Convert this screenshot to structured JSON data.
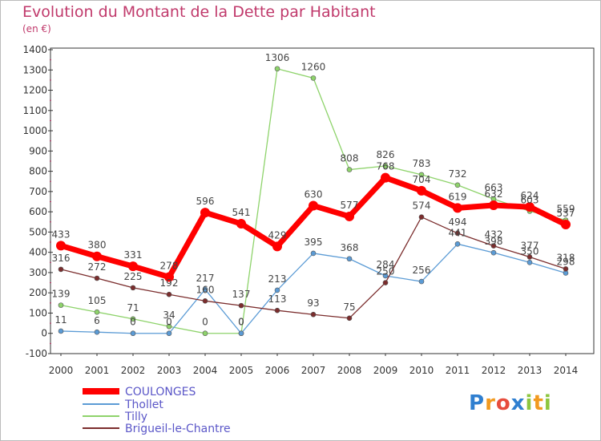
{
  "title": "Evolution du Montant de la Dette par Habitant",
  "unit": "(en €)",
  "logo": "Proxiti",
  "chart_data": {
    "type": "line",
    "x": [
      "2000",
      "2001",
      "2002",
      "2003",
      "2004",
      "2005",
      "2006",
      "2007",
      "2008",
      "2009",
      "2010",
      "2011",
      "2012",
      "2013",
      "2014"
    ],
    "ylim": [
      -100,
      1400
    ],
    "yticks": [
      -100,
      0,
      100,
      200,
      300,
      400,
      500,
      600,
      700,
      800,
      900,
      1000,
      1100,
      1200,
      1300,
      1400
    ],
    "grid": false,
    "legend": "bottom-left",
    "series": [
      {
        "name": "COULONGES",
        "color": "#ff0000",
        "values": [
          433,
          380,
          331,
          278,
          596,
          541,
          429,
          630,
          577,
          768,
          704,
          619,
          632,
          624,
          537
        ]
      },
      {
        "name": "Thollet",
        "color": "#5b9bd5",
        "values": [
          11,
          6,
          0,
          0,
          217,
          0,
          213,
          395,
          368,
          284,
          256,
          441,
          398,
          350,
          298
        ]
      },
      {
        "name": "Tilly",
        "color": "#8ed36b",
        "values": [
          139,
          105,
          71,
          34,
          0,
          0,
          1306,
          1260,
          808,
          826,
          783,
          732,
          663,
          603,
          559
        ]
      },
      {
        "name": "Brigueil-le-Chantre",
        "color": "#7b2d2d",
        "values": [
          316,
          272,
          225,
          192,
          160,
          137,
          113,
          93,
          75,
          250,
          574,
          494,
          432,
          377,
          318
        ]
      }
    ]
  }
}
